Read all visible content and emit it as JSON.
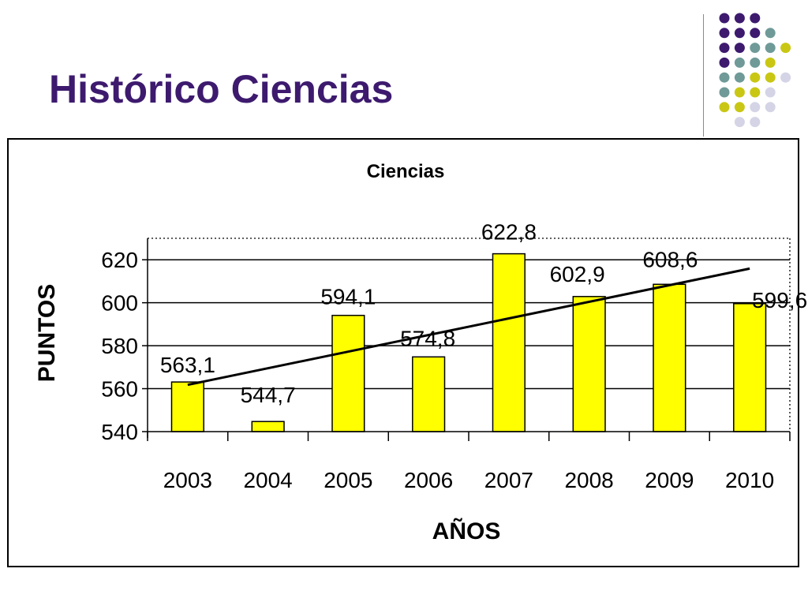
{
  "slide": {
    "title": "Histórico Ciencias"
  },
  "decoration": {
    "dot_colors": {
      "purple": "#3d1a6e",
      "teal": "#6f9a98",
      "olive": "#c9c714",
      "lavender": "#d4d4e6"
    }
  },
  "chart_data": {
    "type": "bar",
    "title": "Ciencias",
    "xlabel": "AÑOS",
    "ylabel": "PUNTOS",
    "categories": [
      "2003",
      "2004",
      "2005",
      "2006",
      "2007",
      "2008",
      "2009",
      "2010"
    ],
    "values": [
      563.1,
      544.7,
      594.1,
      574.8,
      622.8,
      602.9,
      608.6,
      599.6
    ],
    "data_labels": [
      "563,1",
      "544,7",
      "594,1",
      "574,8",
      "622,8",
      "602,9",
      "608,6",
      "599,6"
    ],
    "yticks": [
      "540",
      "560",
      "580",
      "600",
      "620"
    ],
    "ylim": [
      540,
      630
    ],
    "grid": true,
    "trendline": true,
    "colors": {
      "bar_fill": "#ffff00",
      "bar_stroke": "#000000",
      "trend": "#000000"
    }
  }
}
